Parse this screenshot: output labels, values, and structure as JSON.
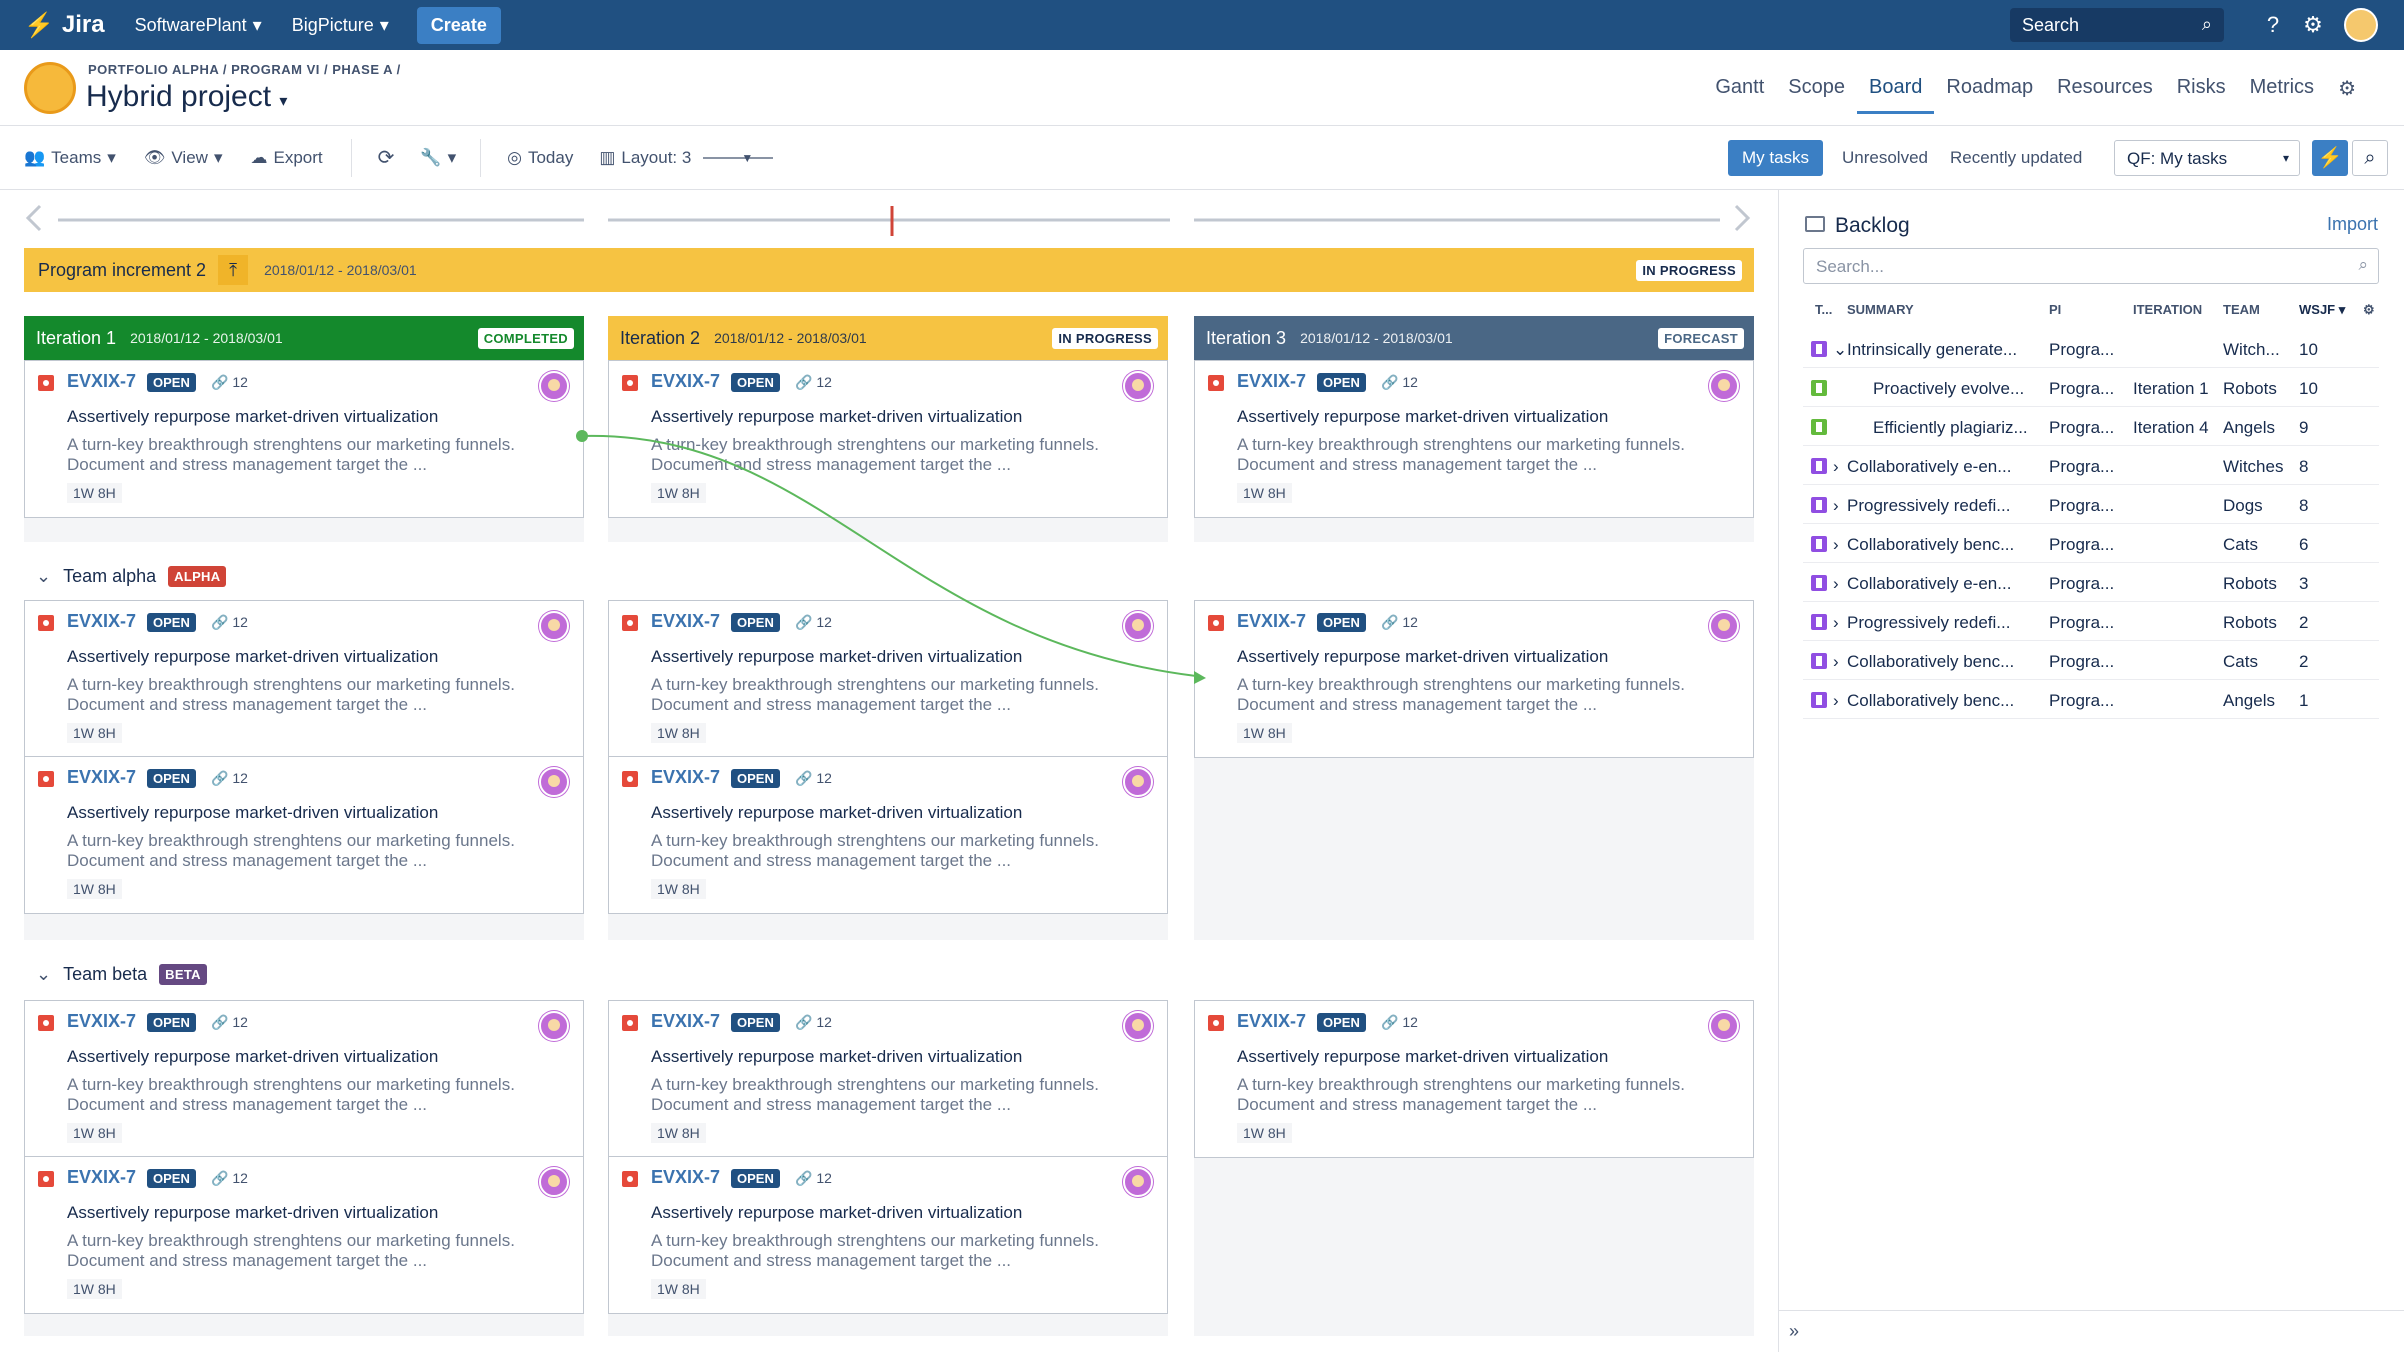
{
  "topnav": {
    "logo": "Jira",
    "menus": [
      "SoftwarePlant",
      "BigPicture"
    ],
    "create": "Create",
    "search_placeholder": "Search"
  },
  "header": {
    "breadcrumb": "PORTFOLIO ALPHA / PROGRAM VI / PHASE A /",
    "title": "Hybrid project",
    "tabs": [
      "Gantt",
      "Scope",
      "Board",
      "Roadmap",
      "Resources",
      "Risks",
      "Metrics"
    ],
    "active_tab": "Board"
  },
  "toolbar": {
    "teams": "Teams",
    "view": "View",
    "export": "Export",
    "today": "Today",
    "layout": "Layout: 3",
    "my_tasks": "My tasks",
    "unresolved": "Unresolved",
    "recently_updated": "Recently updated",
    "qf": "QF: My tasks"
  },
  "program_increment": {
    "name": "Program increment 2",
    "dates": "2018/01/12 - 2018/03/01",
    "status": "IN PROGRESS"
  },
  "iterations": [
    {
      "name": "Iteration 1",
      "dates": "2018/01/12 - 2018/03/01",
      "status": "COMPLETED",
      "color": "#14892c"
    },
    {
      "name": "Iteration 2",
      "dates": "2018/01/12 - 2018/03/01",
      "status": "IN PROGRESS",
      "color": "#f6c342"
    },
    {
      "name": "Iteration 3",
      "dates": "2018/01/12 - 2018/03/01",
      "status": "FORECAST",
      "color": "#4a6785"
    }
  ],
  "teams": [
    {
      "name": "Team alpha",
      "badge": "ALPHA",
      "badge_color": "#d04437"
    },
    {
      "name": "Team beta",
      "badge": "BETA",
      "badge_color": "#654982"
    }
  ],
  "card": {
    "key": "EVXIX-7",
    "status": "OPEN",
    "attachments": "12",
    "title": "Assertively repurpose market-driven virtualization",
    "desc1": "A turn-key breakthrough strenghtens our marketing funnels.",
    "desc2": "Document and stress management target the ...",
    "estimate": "1W 8H"
  },
  "backlog": {
    "title": "Backlog",
    "import": "Import",
    "search_placeholder": "Search...",
    "headers": {
      "type": "T...",
      "summary": "SUMMARY",
      "pi": "PI",
      "iteration": "ITERATION",
      "team": "TEAM",
      "wsjf": "WSJF"
    },
    "rows": [
      {
        "type": "epic",
        "expand": "open",
        "summary": "Intrinsically generate...",
        "pi": "Progra...",
        "iteration": "",
        "team": "Witch...",
        "wsjf": "10"
      },
      {
        "type": "story",
        "expand": "",
        "summary": "Proactively evolve...",
        "pi": "Progra...",
        "iteration": "Iteration 1",
        "team": "Robots",
        "wsjf": "10"
      },
      {
        "type": "story",
        "expand": "",
        "summary": "Efficiently plagiariz...",
        "pi": "Progra...",
        "iteration": "Iteration 4",
        "team": "Angels",
        "wsjf": "9"
      },
      {
        "type": "epic",
        "expand": "closed",
        "summary": "Collaboratively e-en...",
        "pi": "Progra...",
        "iteration": "",
        "team": "Witches",
        "wsjf": "8"
      },
      {
        "type": "epic",
        "expand": "closed",
        "summary": "Progressively redefi...",
        "pi": "Progra...",
        "iteration": "",
        "team": "Dogs",
        "wsjf": "8"
      },
      {
        "type": "epic",
        "expand": "closed",
        "summary": "Collaboratively benc...",
        "pi": "Progra...",
        "iteration": "",
        "team": "Cats",
        "wsjf": "6"
      },
      {
        "type": "epic",
        "expand": "closed",
        "summary": "Collaboratively e-en...",
        "pi": "Progra...",
        "iteration": "",
        "team": "Robots",
        "wsjf": "3"
      },
      {
        "type": "epic",
        "expand": "closed",
        "summary": "Progressively redefi...",
        "pi": "Progra...",
        "iteration": "",
        "team": "Robots",
        "wsjf": "2"
      },
      {
        "type": "epic",
        "expand": "closed",
        "summary": "Collaboratively benc...",
        "pi": "Progra...",
        "iteration": "",
        "team": "Cats",
        "wsjf": "2"
      },
      {
        "type": "epic",
        "expand": "closed",
        "summary": "Collaboratively benc...",
        "pi": "Progra...",
        "iteration": "",
        "team": "Angels",
        "wsjf": "1"
      }
    ]
  }
}
